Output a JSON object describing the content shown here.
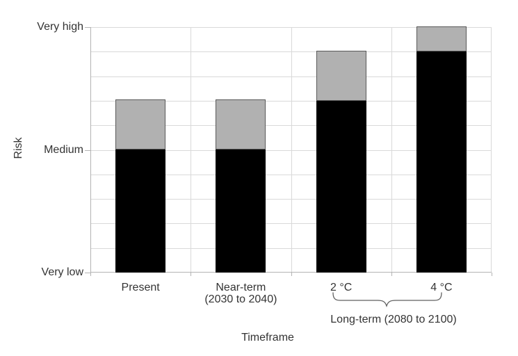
{
  "chart_data": {
    "type": "bar",
    "stacked": true,
    "orientation": "vertical",
    "title": "",
    "xlabel": "Timeframe",
    "ylabel": "Risk",
    "categories": [
      "Present",
      "Near-term (2030 to 2040)",
      "2 °C",
      "4 °C"
    ],
    "xtick_lines": [
      [
        "Present"
      ],
      [
        "Near-term",
        "(2030 to 2040)"
      ],
      [
        "2 °C"
      ],
      [
        "4 °C"
      ]
    ],
    "series": [
      {
        "name": "risk-level",
        "color": "#000000",
        "values": [
          5,
          5,
          7,
          9
        ]
      },
      {
        "name": "additional-risk-range",
        "color": "#b1b1b1",
        "border_color": "#595959",
        "values": [
          2,
          2,
          2,
          1
        ]
      }
    ],
    "ylim": [
      0,
      10
    ],
    "gridline_step": 1,
    "grid": "on",
    "legend": "none",
    "yticks": [
      {
        "value": 0,
        "label": "Very low"
      },
      {
        "value": 5,
        "label": "Medium"
      },
      {
        "value": 10,
        "label": "Very high"
      }
    ],
    "annotation": {
      "label": "Long-term (2080 to 2100)",
      "marker": "underbrace",
      "applies_to": [
        "2 °C",
        "4 °C"
      ]
    }
  },
  "colors": {
    "background": "#ffffff",
    "gridline": "#d9d9d9",
    "axis": "#b3b3b3",
    "text": "#333333",
    "bar_black": "#000000",
    "bar_gray": "#b1b1b1",
    "bar_gray_border": "#595959",
    "brace": "#5f5f5f"
  }
}
